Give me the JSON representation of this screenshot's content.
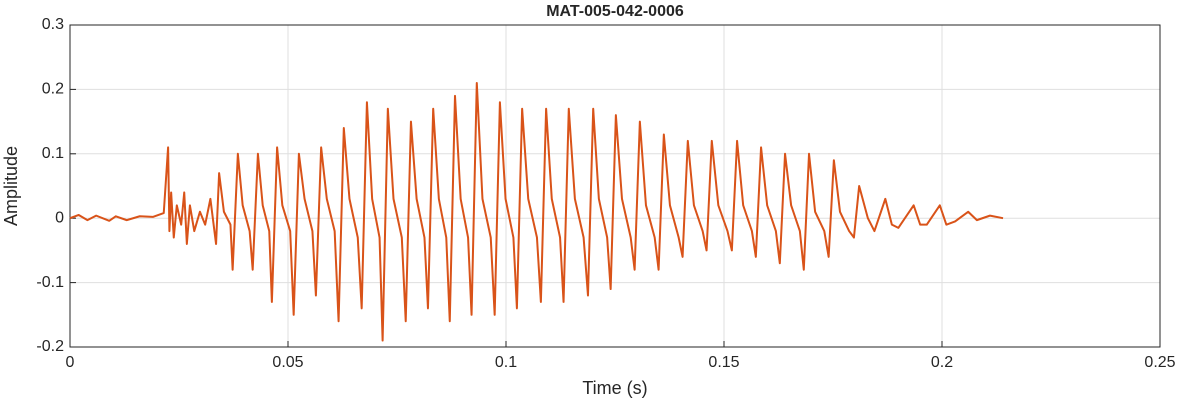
{
  "chart_data": {
    "type": "line",
    "title": "MAT-005-042-0006",
    "x_label": "Time (s)",
    "y_label": "Amplitude",
    "color": "#d95319",
    "grid": true,
    "xlim": [
      0,
      0.25
    ],
    "ylim": [
      -0.2,
      0.3
    ],
    "xticks": [
      0,
      0.05,
      0.1,
      0.15,
      0.2,
      0.25
    ],
    "yticks": [
      -0.2,
      -0.1,
      0,
      0.1,
      0.2,
      0.3
    ],
    "x": [
      0,
      0.002,
      0.004,
      0.006,
      0.009,
      0.0105,
      0.013,
      0.016,
      0.019,
      0.0215,
      0.0225,
      0.0228,
      0.0232,
      0.0238,
      0.0245,
      0.0255,
      0.0262,
      0.0268,
      0.0275,
      0.0285,
      0.0298,
      0.031,
      0.0322,
      0.0335,
      0.0342,
      0.0353,
      0.0368,
      0.0373,
      0.0385,
      0.0396,
      0.0412,
      0.0419,
      0.0431,
      0.0442,
      0.0457,
      0.0463,
      0.0475,
      0.0487,
      0.0505,
      0.0513,
      0.0525,
      0.0538,
      0.0556,
      0.0564,
      0.0576,
      0.0589,
      0.0607,
      0.0616,
      0.0628,
      0.0641,
      0.066,
      0.0669,
      0.0681,
      0.0693,
      0.071,
      0.0717,
      0.0729,
      0.0742,
      0.0761,
      0.077,
      0.0782,
      0.0795,
      0.0813,
      0.0821,
      0.0833,
      0.0846,
      0.0863,
      0.0871,
      0.0883,
      0.0896,
      0.0913,
      0.0921,
      0.0933,
      0.0946,
      0.0965,
      0.0974,
      0.0986,
      0.0999,
      0.1017,
      0.1025,
      0.1037,
      0.1051,
      0.1071,
      0.108,
      0.1092,
      0.1105,
      0.1124,
      0.1132,
      0.1144,
      0.1158,
      0.1178,
      0.1188,
      0.12,
      0.1213,
      0.1232,
      0.124,
      0.1252,
      0.1266,
      0.1286,
      0.1295,
      0.1307,
      0.1321,
      0.1341,
      0.135,
      0.1362,
      0.1376,
      0.1396,
      0.1405,
      0.1417,
      0.1431,
      0.1451,
      0.146,
      0.1472,
      0.1487,
      0.1508,
      0.1518,
      0.153,
      0.1544,
      0.1564,
      0.1573,
      0.1585,
      0.1599,
      0.1619,
      0.1628,
      0.164,
      0.1654,
      0.1674,
      0.1683,
      0.1695,
      0.1709,
      0.173,
      0.174,
      0.1752,
      0.1766,
      0.1787,
      0.1798,
      0.181,
      0.183,
      0.1845,
      0.187,
      0.1885,
      0.19,
      0.1935,
      0.195,
      0.1965,
      0.1995,
      0.201,
      0.203,
      0.206,
      0.208,
      0.211,
      0.214
    ],
    "values": [
      0,
      0.005,
      -0.003,
      0.004,
      -0.004,
      0.003,
      -0.003,
      0.003,
      0.002,
      0.008,
      0.11,
      -0.02,
      0.04,
      -0.03,
      0.02,
      -0.01,
      0.04,
      -0.04,
      0.02,
      -0.02,
      0.01,
      -0.01,
      0.03,
      -0.04,
      0.07,
      0.01,
      -0.01,
      -0.08,
      0.1,
      0.02,
      -0.02,
      -0.08,
      0.1,
      0.02,
      -0.02,
      -0.13,
      0.11,
      0.02,
      -0.02,
      -0.15,
      0.1,
      0.03,
      -0.02,
      -0.12,
      0.11,
      0.03,
      -0.02,
      -0.16,
      0.14,
      0.03,
      -0.03,
      -0.14,
      0.18,
      0.03,
      -0.03,
      -0.19,
      0.17,
      0.03,
      -0.03,
      -0.16,
      0.15,
      0.03,
      -0.03,
      -0.14,
      0.17,
      0.03,
      -0.03,
      -0.16,
      0.19,
      0.03,
      -0.03,
      -0.15,
      0.21,
      0.03,
      -0.03,
      -0.15,
      0.18,
      0.03,
      -0.03,
      -0.14,
      0.17,
      0.03,
      -0.03,
      -0.13,
      0.17,
      0.03,
      -0.03,
      -0.13,
      0.17,
      0.03,
      -0.03,
      -0.12,
      0.17,
      0.03,
      -0.03,
      -0.11,
      0.16,
      0.03,
      -0.03,
      -0.08,
      0.15,
      0.02,
      -0.03,
      -0.08,
      0.13,
      0.02,
      -0.03,
      -0.06,
      0.12,
      0.02,
      -0.02,
      -0.05,
      0.12,
      0.02,
      -0.02,
      -0.05,
      0.12,
      0.02,
      -0.02,
      -0.06,
      0.11,
      0.02,
      -0.02,
      -0.07,
      0.1,
      0.02,
      -0.02,
      -0.08,
      0.1,
      0.01,
      -0.02,
      -0.06,
      0.09,
      0.01,
      -0.02,
      -0.03,
      0.05,
      0,
      -0.02,
      0.03,
      -0.01,
      -0.015,
      0.02,
      -0.01,
      -0.01,
      0.02,
      -0.01,
      -0.005,
      0.01,
      -0.003,
      0.004,
      0
    ]
  }
}
